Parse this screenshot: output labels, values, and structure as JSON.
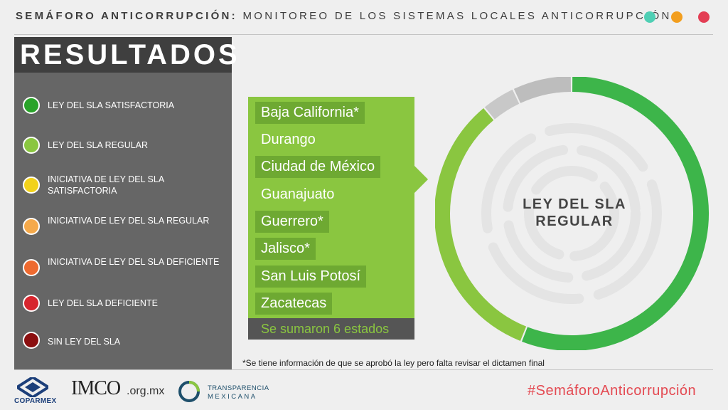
{
  "header": {
    "title_bold": "SEMÁFORO ANTICORRUPCIÓN:",
    "title_rest": "MONITOREO DE LOS SISTEMAS LOCALES ANTICORRUPCIÓN",
    "dot_colors": [
      "#4fcfb4",
      "#f29e1e",
      "#e33e54"
    ]
  },
  "results_title": "RESULTADOS",
  "legend": {
    "items": [
      {
        "label": "LEY DEL SLA SATISFACTORIA",
        "color": "#2aa32a"
      },
      {
        "label": "LEY DEL SLA REGULAR",
        "color": "#8ac640"
      },
      {
        "label": "INICIATIVA DE LEY DEL SLA SATISFACTORIA",
        "color": "#f2d21b"
      },
      {
        "label": "INICIATIVA DE LEY DEL SLA REGULAR",
        "color": "#f5a94a"
      },
      {
        "label": "INICIATIVA DE LEY DEL SLA DEFICIENTE",
        "color": "#ee6a30"
      },
      {
        "label": "LEY DEL SLA DEFICIENTE",
        "color": "#d7262e"
      },
      {
        "label": "SIN LEY DEL SLA",
        "color": "#8b0f10"
      }
    ]
  },
  "states": {
    "items": [
      {
        "name": "Baja California*",
        "boxed": true
      },
      {
        "name": "Durango",
        "boxed": false
      },
      {
        "name": "Ciudad de México",
        "boxed": true
      },
      {
        "name": "Guanajuato",
        "boxed": false
      },
      {
        "name": "Guerrero*",
        "boxed": true
      },
      {
        "name": "Jalisco*",
        "boxed": true
      },
      {
        "name": "San Luis Potosí",
        "boxed": true
      },
      {
        "name": "Zacatecas",
        "boxed": true
      }
    ],
    "summary": "Se sumaron 6 estados"
  },
  "footnote": "*Se tiene información de que se aprobó la ley pero falta revisar el dictamen final",
  "chart_data": {
    "type": "pie",
    "title": "LEY DEL SLA REGULAR",
    "slices": [
      {
        "category": "LEY DEL SLA SATISFACTORIA",
        "value": 0.56,
        "color": "#3db54a"
      },
      {
        "category": "LEY DEL SLA REGULAR",
        "value": 0.33,
        "color": "#8ac640"
      },
      {
        "category": "",
        "value": 0.04,
        "color": "#c8c8c8"
      },
      {
        "category": "",
        "value": 0.07,
        "color": "#bdbdbd"
      }
    ]
  },
  "footer": {
    "coparmex": "COPARMEX",
    "imco": "IMCO",
    "imco_domain": ".org.mx",
    "tm_line1": "TRANSPARENCIA",
    "tm_line2": "MEXICANA",
    "hashtag": "#SemáforoAnticorrupción"
  }
}
